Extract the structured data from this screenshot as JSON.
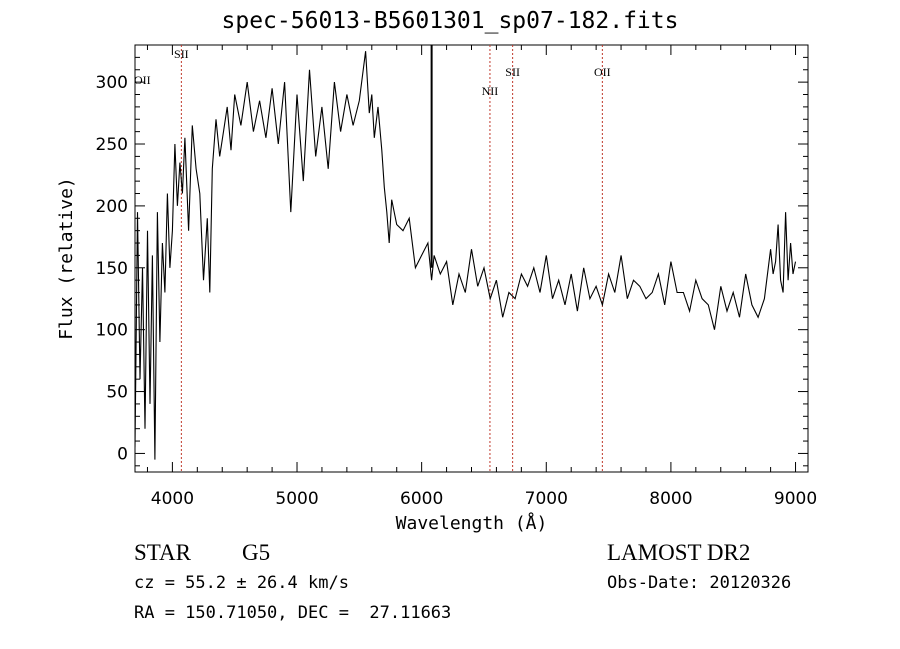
{
  "title": "spec-56013-B5601301_sp07-182.fits",
  "chart_data": {
    "type": "line",
    "xlabel": "Wavelength (Å)",
    "ylabel": "Flux (relative)",
    "xlim": [
      3700,
      9100
    ],
    "ylim": [
      -15,
      330
    ],
    "xticks": [
      4000,
      5000,
      6000,
      7000,
      8000,
      9000
    ],
    "yticks": [
      0,
      50,
      100,
      150,
      200,
      250,
      300
    ],
    "series": [
      {
        "x": [
          3700,
          3720,
          3740,
          3760,
          3780,
          3800,
          3820,
          3840,
          3860,
          3880,
          3900,
          3920,
          3940,
          3960,
          3980,
          4000,
          4020,
          4040,
          4060,
          4080,
          4100,
          4130,
          4160,
          4190,
          4220,
          4250,
          4280,
          4300,
          4320,
          4350,
          4380,
          4410,
          4440,
          4470,
          4500,
          4550,
          4600,
          4650,
          4700,
          4750,
          4800,
          4850,
          4900,
          4950,
          5000,
          5050,
          5100,
          5150,
          5200,
          5250,
          5300,
          5350,
          5400,
          5450,
          5500,
          5550,
          5580,
          5600,
          5620,
          5650,
          5680,
          5700,
          5720,
          5740,
          5760,
          5800,
          5850,
          5900,
          5950,
          6000,
          6050,
          6080,
          6100,
          6150,
          6200,
          6250,
          6300,
          6350,
          6400,
          6450,
          6500,
          6550,
          6600,
          6650,
          6700,
          6750,
          6800,
          6850,
          6900,
          6950,
          7000,
          7050,
          7100,
          7150,
          7200,
          7250,
          7300,
          7350,
          7400,
          7450,
          7500,
          7550,
          7600,
          7650,
          7700,
          7750,
          7800,
          7850,
          7900,
          7950,
          8000,
          8050,
          8100,
          8150,
          8200,
          8250,
          8300,
          8350,
          8400,
          8450,
          8500,
          8550,
          8600,
          8650,
          8700,
          8750,
          8800,
          8820,
          8840,
          8860,
          8880,
          8900,
          8920,
          8940,
          8960,
          8980,
          9000
        ],
        "values": [
          5,
          195,
          60,
          150,
          20,
          180,
          40,
          160,
          -5,
          195,
          90,
          170,
          130,
          210,
          150,
          180,
          250,
          200,
          235,
          210,
          255,
          180,
          265,
          230,
          210,
          140,
          190,
          130,
          230,
          270,
          240,
          260,
          280,
          245,
          290,
          265,
          300,
          260,
          285,
          255,
          295,
          250,
          300,
          195,
          290,
          220,
          310,
          240,
          280,
          230,
          300,
          260,
          290,
          265,
          285,
          325,
          275,
          290,
          255,
          280,
          245,
          215,
          195,
          170,
          205,
          185,
          180,
          190,
          150,
          160,
          170,
          140,
          160,
          145,
          155,
          120,
          145,
          130,
          165,
          135,
          150,
          125,
          140,
          110,
          130,
          125,
          145,
          135,
          150,
          130,
          160,
          125,
          140,
          120,
          145,
          115,
          150,
          125,
          135,
          120,
          145,
          130,
          160,
          125,
          140,
          135,
          125,
          130,
          145,
          120,
          155,
          130,
          130,
          115,
          140,
          125,
          120,
          100,
          135,
          115,
          130,
          110,
          145,
          120,
          110,
          125,
          165,
          145,
          155,
          185,
          140,
          130,
          195,
          140,
          170,
          145,
          155
        ]
      }
    ],
    "vlines": [
      {
        "x": 4072,
        "label": "SII"
      },
      {
        "x": 6548,
        "label": "NII"
      },
      {
        "x": 6730,
        "label": "SII"
      },
      {
        "x": 7450,
        "label": "OII"
      }
    ],
    "extra_labels": [
      {
        "x": 3727,
        "y": 300,
        "label": "OII"
      }
    ],
    "spikes": [
      {
        "x": 6080,
        "from": 150,
        "to": 330
      }
    ]
  },
  "info": {
    "class": "STAR",
    "subclass": "G5",
    "cz": "cz = 55.2 ± 26.4 km/s",
    "radec": "RA = 150.71050, DEC =  27.11663",
    "survey": "LAMOST DR2",
    "obsdate": "Obs-Date: 20120326"
  }
}
